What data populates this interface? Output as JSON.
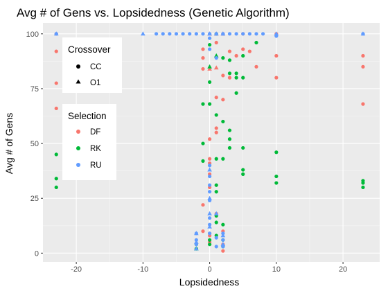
{
  "chart_data": {
    "type": "scatter",
    "title": "Avg # of Gens vs. Lopsidedness (Genetic Algorithm)",
    "xlabel": "Lopsidedness",
    "ylabel": "Avg # of Gens",
    "xlim": [
      -25,
      25.5
    ],
    "ylim": [
      -4,
      105
    ],
    "xticks": [
      -20,
      -10,
      0,
      10,
      20
    ],
    "yticks": [
      0,
      25,
      50,
      75,
      100
    ],
    "grid": true,
    "legend_placement": "top-left inside",
    "legends": [
      {
        "title": "Crossover",
        "entries": [
          {
            "label": "CC",
            "shape": "circle"
          },
          {
            "label": "O1",
            "shape": "triangle"
          }
        ]
      },
      {
        "title": "Selection",
        "entries": [
          {
            "label": "DF",
            "color": "#F8766D"
          },
          {
            "label": "RK",
            "color": "#00BA38"
          },
          {
            "label": "RU",
            "color": "#619CFF"
          }
        ]
      }
    ],
    "colors": {
      "DF": "#F8766D",
      "RK": "#00BA38",
      "RU": "#619CFF"
    },
    "series": [
      {
        "selection": "DF",
        "crossover": "CC",
        "points": [
          [
            -23,
            92
          ],
          [
            -23,
            77.5
          ],
          [
            -23,
            66
          ],
          [
            -23,
            100
          ],
          [
            0,
            52
          ],
          [
            -1,
            89
          ],
          [
            -1,
            93
          ],
          [
            -1,
            84
          ],
          [
            0,
            43
          ],
          [
            0,
            41
          ],
          [
            0,
            36
          ],
          [
            0,
            30
          ],
          [
            -1,
            22
          ],
          [
            0,
            9
          ],
          [
            0,
            8
          ],
          [
            1,
            100
          ],
          [
            1,
            96
          ],
          [
            1,
            71
          ],
          [
            1,
            57
          ],
          [
            1,
            55
          ],
          [
            1,
            18
          ],
          [
            2,
            100
          ],
          [
            2,
            81
          ],
          [
            2,
            70
          ],
          [
            2,
            10
          ],
          [
            2,
            1
          ],
          [
            3,
            92
          ],
          [
            3,
            80
          ],
          [
            4,
            90
          ],
          [
            5,
            93
          ],
          [
            5,
            100
          ],
          [
            6,
            92
          ],
          [
            7,
            85
          ],
          [
            10,
            100
          ],
          [
            10,
            90
          ],
          [
            10,
            80
          ],
          [
            23,
            90
          ],
          [
            23,
            85
          ],
          [
            23,
            68
          ],
          [
            -1,
            10
          ],
          [
            0,
            5
          ],
          [
            2,
            4
          ]
        ]
      },
      {
        "selection": "DF",
        "crossover": "O1",
        "points": [
          [
            0,
            84
          ],
          [
            1,
            84.5
          ],
          [
            1,
            100
          ],
          [
            0,
            100
          ],
          [
            2,
            100
          ]
        ]
      },
      {
        "selection": "RK",
        "crossover": "CC",
        "points": [
          [
            -23,
            45
          ],
          [
            -23,
            34
          ],
          [
            -23,
            30
          ],
          [
            -1,
            68
          ],
          [
            -1,
            50
          ],
          [
            -1,
            42
          ],
          [
            0,
            78
          ],
          [
            0,
            68
          ],
          [
            0,
            6
          ],
          [
            0,
            4
          ],
          [
            -2,
            2
          ],
          [
            -2,
            4
          ],
          [
            1,
            63
          ],
          [
            1,
            43
          ],
          [
            1,
            31
          ],
          [
            1,
            28
          ],
          [
            1,
            17
          ],
          [
            1,
            14
          ],
          [
            1,
            8
          ],
          [
            2,
            89
          ],
          [
            2,
            60
          ],
          [
            2,
            43
          ],
          [
            2,
            13
          ],
          [
            2,
            6
          ],
          [
            2,
            3
          ],
          [
            3,
            88
          ],
          [
            3,
            82
          ],
          [
            3,
            56
          ],
          [
            3,
            52
          ],
          [
            3,
            48
          ],
          [
            4,
            82
          ],
          [
            4,
            80
          ],
          [
            4,
            73
          ],
          [
            5,
            90
          ],
          [
            5,
            80
          ],
          [
            5,
            48
          ],
          [
            5,
            38
          ],
          [
            5,
            36
          ],
          [
            7,
            96
          ],
          [
            10,
            46
          ],
          [
            10,
            35
          ],
          [
            10,
            32
          ],
          [
            23,
            33
          ],
          [
            23,
            32
          ],
          [
            23,
            30
          ],
          [
            0,
            95
          ],
          [
            1,
            100
          ]
        ]
      },
      {
        "selection": "RK",
        "crossover": "O1",
        "points": [
          [
            0,
            85
          ],
          [
            1,
            90
          ],
          [
            -2,
            2
          ]
        ]
      },
      {
        "selection": "RU",
        "crossover": "CC",
        "points": [
          [
            -23,
            100
          ],
          [
            -8,
            100
          ],
          [
            -7,
            100
          ],
          [
            -6,
            100
          ],
          [
            -5,
            100
          ],
          [
            -4,
            100
          ],
          [
            -3,
            100
          ],
          [
            -2,
            100
          ],
          [
            -1,
            100
          ],
          [
            0,
            100
          ],
          [
            1,
            100
          ],
          [
            2,
            100
          ],
          [
            3,
            100
          ],
          [
            4,
            100
          ],
          [
            5,
            100
          ],
          [
            6,
            100
          ],
          [
            7,
            100
          ],
          [
            8,
            100
          ],
          [
            10,
            99
          ],
          [
            23,
            100
          ],
          [
            1,
            89
          ],
          [
            0,
            40
          ],
          [
            0,
            35
          ],
          [
            0,
            31
          ],
          [
            0,
            28
          ],
          [
            0,
            24
          ],
          [
            0,
            16
          ],
          [
            0,
            13
          ],
          [
            0,
            9
          ],
          [
            -2,
            9
          ],
          [
            -2,
            6
          ],
          [
            -2,
            4
          ],
          [
            2,
            9
          ],
          [
            2,
            6
          ],
          [
            2,
            3
          ],
          [
            1,
            7
          ],
          [
            1,
            3
          ],
          [
            0,
            98
          ],
          [
            0,
            93
          ]
        ]
      },
      {
        "selection": "RU",
        "crossover": "O1",
        "points": [
          [
            -23,
            100
          ],
          [
            -10,
            100
          ],
          [
            0,
            100
          ],
          [
            1,
            100
          ],
          [
            2,
            100
          ],
          [
            0,
            38
          ],
          [
            0,
            25
          ],
          [
            0,
            18
          ],
          [
            0,
            12
          ],
          [
            -2,
            9
          ],
          [
            -2,
            5
          ],
          [
            -2,
            2
          ],
          [
            2,
            8
          ],
          [
            2,
            4
          ],
          [
            1,
            18
          ],
          [
            23,
            100
          ],
          [
            10,
            100
          ]
        ]
      }
    ]
  }
}
